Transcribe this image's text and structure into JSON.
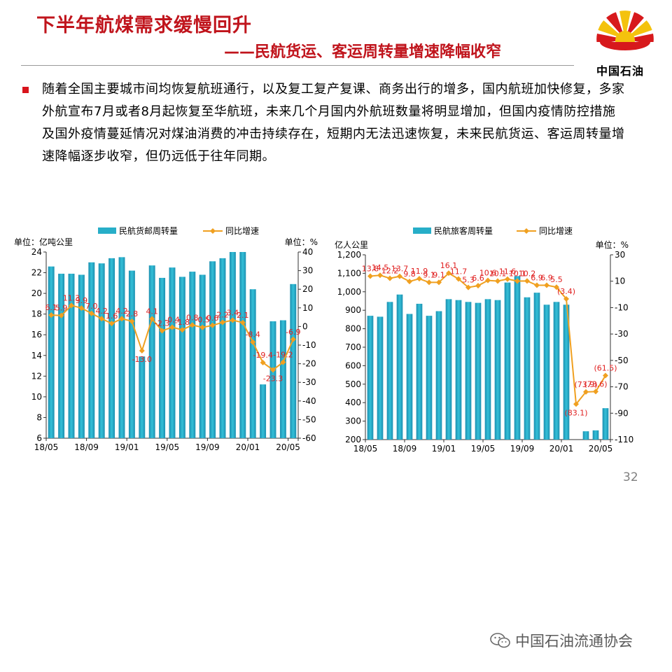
{
  "header": {
    "title": "下半年航煤需求缓慢回升",
    "subtitle": "——民航货运、客运周转量增速降幅收窄",
    "logo_text": "中国石油",
    "logo_colors": {
      "petal_red": "#d7191c",
      "petal_yellow": "#f4c20d"
    }
  },
  "body": {
    "paragraph": "随着全国主要城市间均恢复航班通行，以及复工复产复课、商务出行的增多，国内航班加快修复，多家外航宣布7月或者8月起恢复至华航班，未来几个月国内外航班数量将明显增加，但国内疫情防控措施及国外疫情蔓延情况对煤油消费的冲击持续存在，短期内无法迅速恢复，未来民航货运、客运周转量增速降幅逐步收窄，但仍远低于往年同期。"
  },
  "page_number": "32",
  "footer": {
    "text": "中国石油流通协会",
    "icon": "wechat-icon"
  },
  "colors": {
    "bar": "#27aec8",
    "line": "#f0a020",
    "label": "#e02020"
  },
  "chart_data": [
    {
      "type": "bar",
      "left_unit": "单位：亿吨公里",
      "right_unit": "单位：%",
      "x_ticks": [
        "18/05",
        "18/09",
        "19/01",
        "19/05",
        "19/09",
        "20/01",
        "20/05"
      ],
      "ylim": [
        6,
        24
      ],
      "y_ticks": [
        6,
        8,
        10,
        12,
        14,
        16,
        18,
        20,
        22,
        24
      ],
      "y2lim": [
        -60,
        40
      ],
      "y2_ticks": [
        -60,
        -50,
        -40,
        -30,
        -20,
        -10,
        0,
        10,
        20,
        30,
        40
      ],
      "series": [
        {
          "name": "民航货邮周转量",
          "type": "bar",
          "values": [
            22.6,
            21.9,
            21.9,
            21.8,
            23.0,
            22.9,
            23.4,
            23.5,
            22.2,
            13.9,
            22.7,
            21.5,
            22.5,
            21.6,
            22.1,
            21.8,
            23.1,
            23.4,
            24.0,
            24.0,
            20.4,
            11.2,
            17.3,
            17.4,
            20.9
          ]
        },
        {
          "name": "同比增速",
          "type": "line",
          "values": [
            6.1,
            5.9,
            11.3,
            9.9,
            7.0,
            4.2,
            1.6,
            4.2,
            2.8,
            -13.0,
            4.1,
            -2.3,
            -0.4,
            -1.8,
            0.8,
            -0.5,
            0.6,
            2.2,
            3.4,
            2.1,
            -8.4,
            -19.4,
            -23.3,
            -19.2,
            -6.9
          ],
          "labels": [
            "6.1",
            "5.9",
            "11.3",
            "9.9",
            "7.0",
            "4.2",
            "1.6",
            "4.2",
            "2.8",
            "-13.0",
            "4.1",
            "-2.3",
            "-0.4",
            "-1.8",
            "0.8",
            "-0.5",
            "0.6",
            "2.2",
            "3.4",
            "2.1",
            "-8.4",
            "-19.4",
            "-23.3",
            "-19.2",
            "-6.9"
          ]
        }
      ]
    },
    {
      "type": "bar",
      "left_unit": "亿人公里",
      "right_unit": "单位：%",
      "x_ticks": [
        "18/05",
        "18/09",
        "19/01",
        "19/05",
        "19/09",
        "20/01",
        "20/05"
      ],
      "ylim": [
        200,
        1200
      ],
      "y_ticks": [
        200,
        300,
        400,
        500,
        600,
        700,
        800,
        900,
        1000,
        1100,
        1200
      ],
      "y_tick_labels": [
        "200",
        "300",
        "400",
        "500",
        "600",
        "700",
        "800",
        "900",
        "1,000",
        "1,100",
        "1,200"
      ],
      "y2lim": [
        -110,
        30
      ],
      "y2_ticks": [
        -110,
        -90,
        -70,
        -50,
        -30,
        -10,
        10,
        30
      ],
      "series": [
        {
          "name": "民航旅客周转量",
          "type": "bar",
          "values": [
            870,
            865,
            945,
            985,
            880,
            935,
            870,
            895,
            960,
            955,
            945,
            940,
            960,
            955,
            1050,
            1085,
            970,
            995,
            930,
            945,
            930,
            155,
            245,
            250,
            370
          ]
        },
        {
          "name": "同比增速",
          "type": "line",
          "values": [
            13.8,
            14.5,
            12.2,
            13.7,
            9.8,
            11.9,
            9.1,
            9.1,
            16.1,
            11.7,
            5.3,
            6.6,
            10.6,
            10.1,
            11.6,
            10.1,
            10.2,
            6.9,
            6.9,
            5.5,
            -3.4,
            -83.1,
            -73.9,
            -73.6,
            -61.5
          ],
          "labels": [
            "13.8",
            "14.5",
            "12.2",
            "13.7",
            "9.8",
            "11.9",
            "9.1",
            "9.1",
            "16.1",
            "11.7",
            "5.3",
            "6.6",
            "10.6",
            "10.1",
            "11.6",
            "10.1",
            "10.2",
            "6.9",
            "6.9",
            "5.5",
            "(3.4)",
            "(83.1)",
            "(73.9)",
            "(73.6)",
            "(61.5)"
          ]
        }
      ]
    }
  ]
}
